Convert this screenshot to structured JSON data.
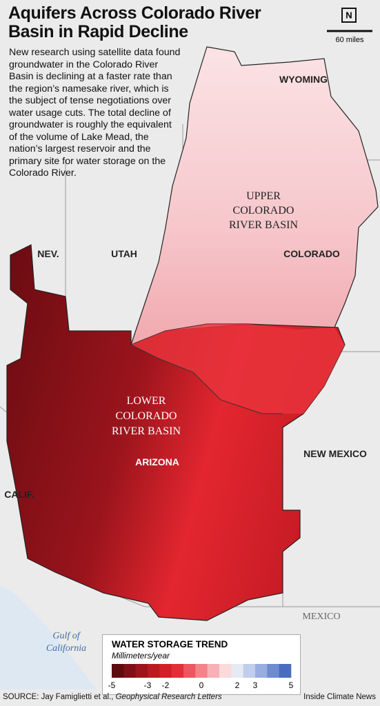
{
  "header": {
    "title_lines": [
      "Aquifers Across Colorado River",
      "Basin in Rapid Decline"
    ],
    "intro": "New research using satellite data found groundwater in the Colorado River Basin is declining at a faster rate than the region’s namesake river, which is the subject of tense negotiations over water usage cuts. The total decline of groundwater is roughly the equivalent of the volume of Lake Mead, the nation’s largest reservoir and the primary site for water storage on the Colorado River."
  },
  "scale": {
    "north": "N",
    "label": "60 miles"
  },
  "labels": {
    "wyoming": "WYOMING",
    "upper_basin": [
      "UPPER",
      "COLORADO",
      "RIVER BASIN"
    ],
    "nevada": "NEV.",
    "utah": "UTAH",
    "colorado": "COLORADO",
    "lower_basin": [
      "LOWER",
      "COLORADO",
      "RIVER BASIN"
    ],
    "arizona": "ARIZONA",
    "new_mexico": "NEW MEXICO",
    "california": "CALIF.",
    "mexico": "MEXICO",
    "gulf": [
      "Gulf of",
      "California"
    ]
  },
  "legend": {
    "title": "WATER STORAGE TREND",
    "subtitle": "Millimeters/year",
    "range": [
      -5,
      5
    ],
    "ticks": [
      -5,
      -3,
      -2,
      0,
      2,
      3,
      5
    ],
    "colors": [
      "#5e0a0f",
      "#7e0f16",
      "#9c141c",
      "#b81a22",
      "#d11f28",
      "#e32e37",
      "#ec5660",
      "#f2838b",
      "#f7b1b6",
      "#fbdadc",
      "#e6eaf5",
      "#c1cdec",
      "#98ade0",
      "#6f8cd1",
      "#4a6cc0"
    ]
  },
  "footer": {
    "source": "SOURCE: Jay Famiglietti et al., ",
    "journal": "Geophysical Research Letters",
    "credit": "Inside Climate News"
  }
}
